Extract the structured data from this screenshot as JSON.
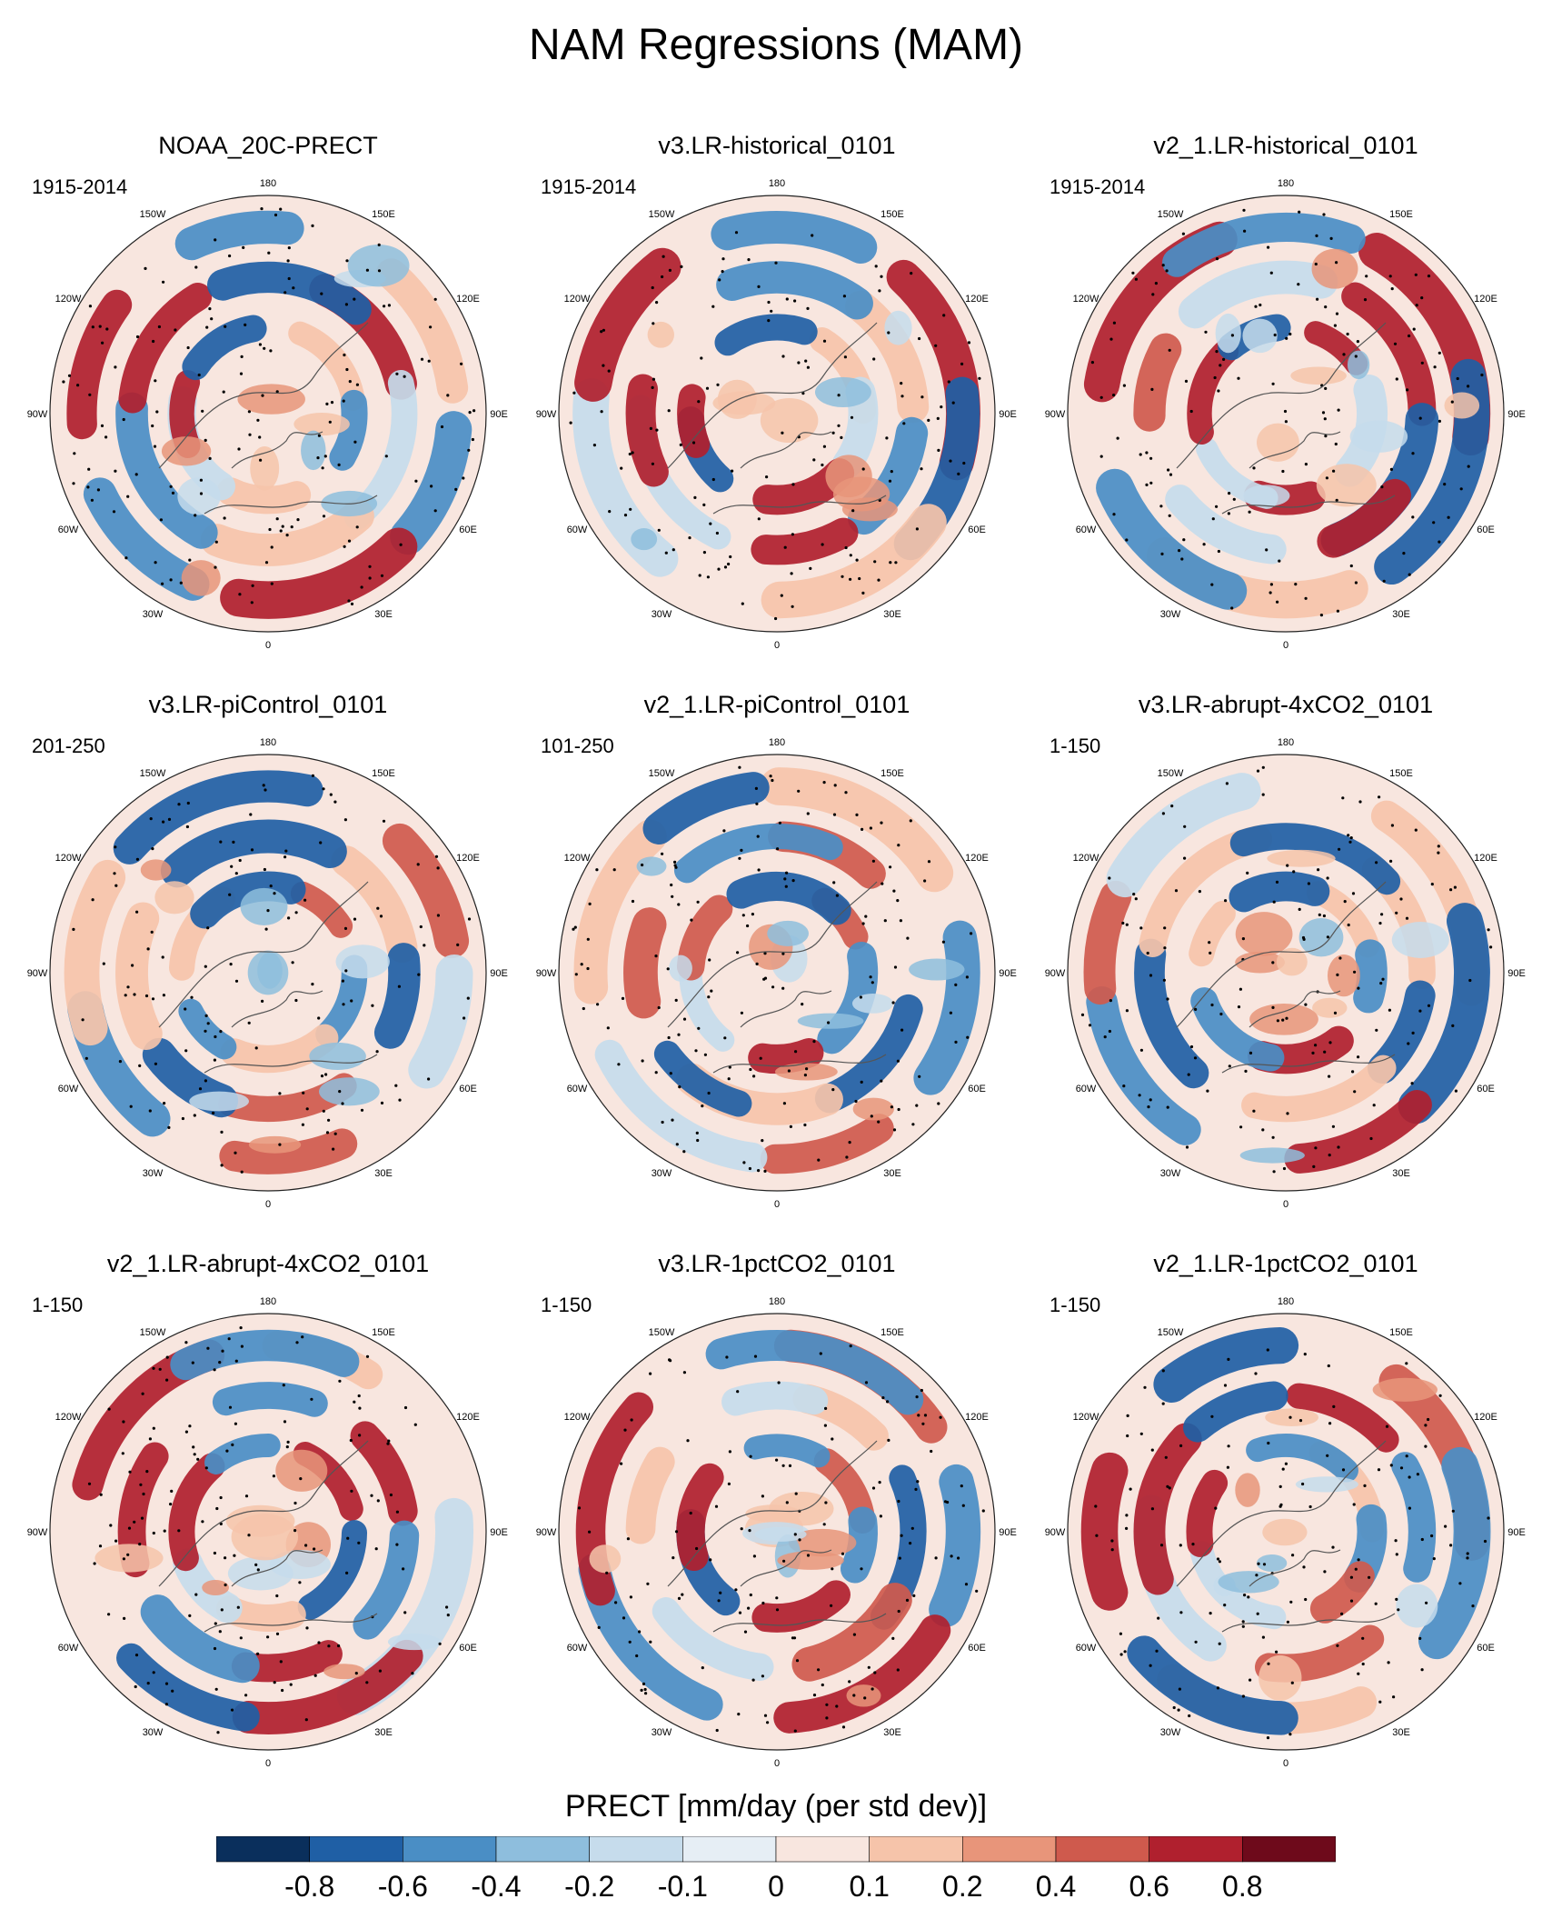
{
  "title": "NAM Regressions (MAM)",
  "longitude_labels": [
    "180",
    "150E",
    "120E",
    "90E",
    "60E",
    "30E",
    "0",
    "30W",
    "60W",
    "90W",
    "120W",
    "150W"
  ],
  "panels": [
    {
      "title": "NOAA_20C-PRECT",
      "period": "1915-2014",
      "seed": 11
    },
    {
      "title": "v3.LR-historical_0101",
      "period": "1915-2014",
      "seed": 23
    },
    {
      "title": "v2_1.LR-historical_0101",
      "period": "1915-2014",
      "seed": 37
    },
    {
      "title": "v3.LR-piControl_0101",
      "period": "201-250",
      "seed": 41
    },
    {
      "title": "v2_1.LR-piControl_0101",
      "period": "101-250",
      "seed": 53
    },
    {
      "title": "v3.LR-abrupt-4xCO2_0101",
      "period": "1-150",
      "seed": 67
    },
    {
      "title": "v2_1.LR-abrupt-4xCO2_0101",
      "period": "1-150",
      "seed": 71
    },
    {
      "title": "v3.LR-1pctCO2_0101",
      "period": "1-150",
      "seed": 83
    },
    {
      "title": "v2_1.LR-1pctCO2_0101",
      "period": "1-150",
      "seed": 97
    }
  ],
  "colorbar": {
    "title": "PRECT [mm/day (per std dev)]",
    "tick_labels": [
      "-0.8",
      "-0.6",
      "-0.4",
      "-0.2",
      "-0.1",
      "0",
      "0.1",
      "0.2",
      "0.4",
      "0.6",
      "0.8"
    ],
    "colors": [
      "#0a2f5c",
      "#1f5fa5",
      "#4a8ec5",
      "#8ebedd",
      "#c6dcec",
      "#e6eef5",
      "#f8e6df",
      "#f6c4aa",
      "#e8957a",
      "#cf5a4d",
      "#b0202e",
      "#6e0a1b"
    ]
  }
}
